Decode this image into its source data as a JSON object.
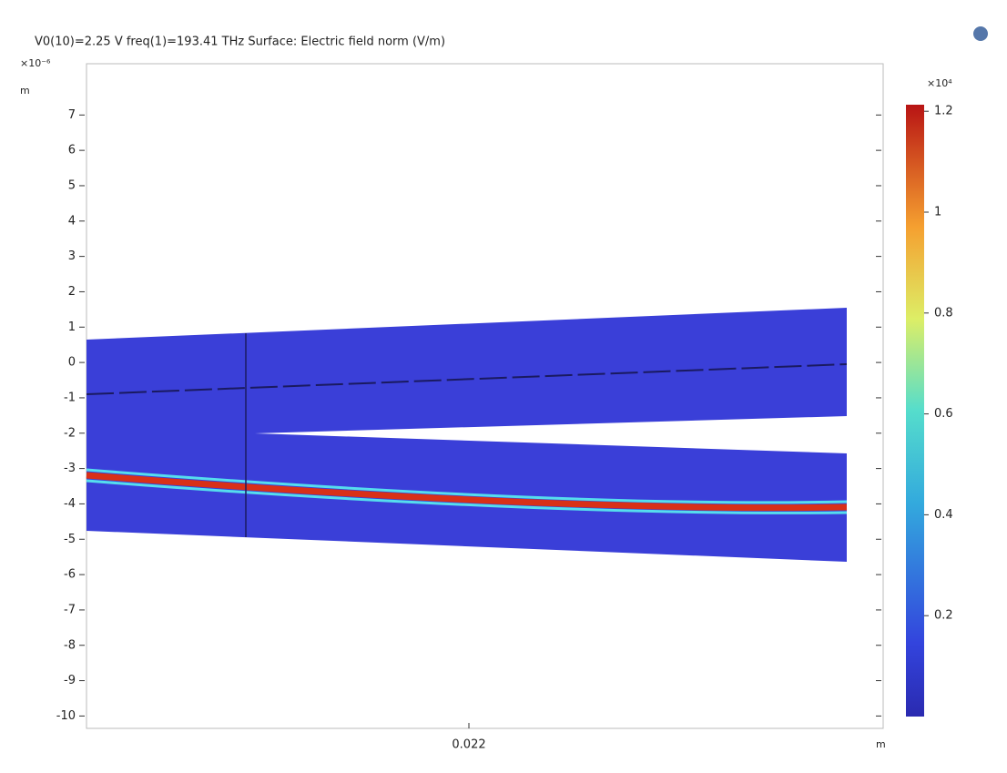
{
  "chart_data": {
    "type": "field-plot",
    "title": "V0(10)=2.25 V freq(1)=193.41 THz  Surface: Electric field norm (V/m)",
    "y_scale_label": "×10⁻⁶",
    "y_unit": "m",
    "x_unit": "m",
    "ylim": [
      -10.35,
      8.45
    ],
    "yticks": [
      7,
      6,
      5,
      4,
      3,
      2,
      1,
      0,
      -1,
      -2,
      -3,
      -4,
      -5,
      -6,
      -7,
      -8,
      -9,
      -10
    ],
    "xlim": [
      0.021952,
      0.022052
    ],
    "xticks": [
      0.022
    ],
    "colorbar": {
      "scale_label": "×10⁴",
      "clim": [
        0,
        1.213
      ],
      "ticks": [
        1.2,
        1,
        0.8,
        0.6,
        0.4,
        0.2
      ]
    }
  }
}
